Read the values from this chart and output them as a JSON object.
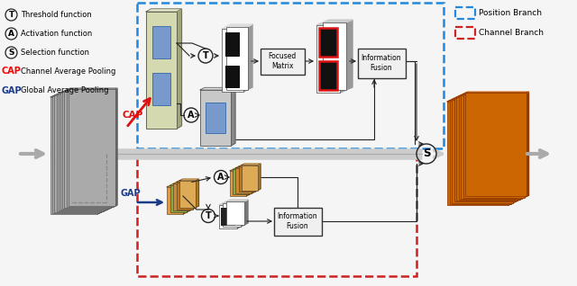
{
  "legend_items": [
    {
      "symbol": "T",
      "text": "Threshold function"
    },
    {
      "symbol": "A",
      "text": "Activation function"
    },
    {
      "symbol": "S",
      "text": "Selection function"
    },
    {
      "symbol": "CAP",
      "text": "Channel Average Pooling",
      "color": "red"
    },
    {
      "symbol": "GAP",
      "text": "Global Average Pooling",
      "color": "#1a3a8a"
    }
  ],
  "position_branch_color": "#2288dd",
  "channel_branch_color": "#cc2222",
  "background": "#f5f5f5",
  "input_fc": "#999999",
  "output_fc": "#cc6600",
  "gap_colors": [
    "#dd9944",
    "#88aa44",
    "#cc8833",
    "#bb7722",
    "#ddaa55"
  ]
}
